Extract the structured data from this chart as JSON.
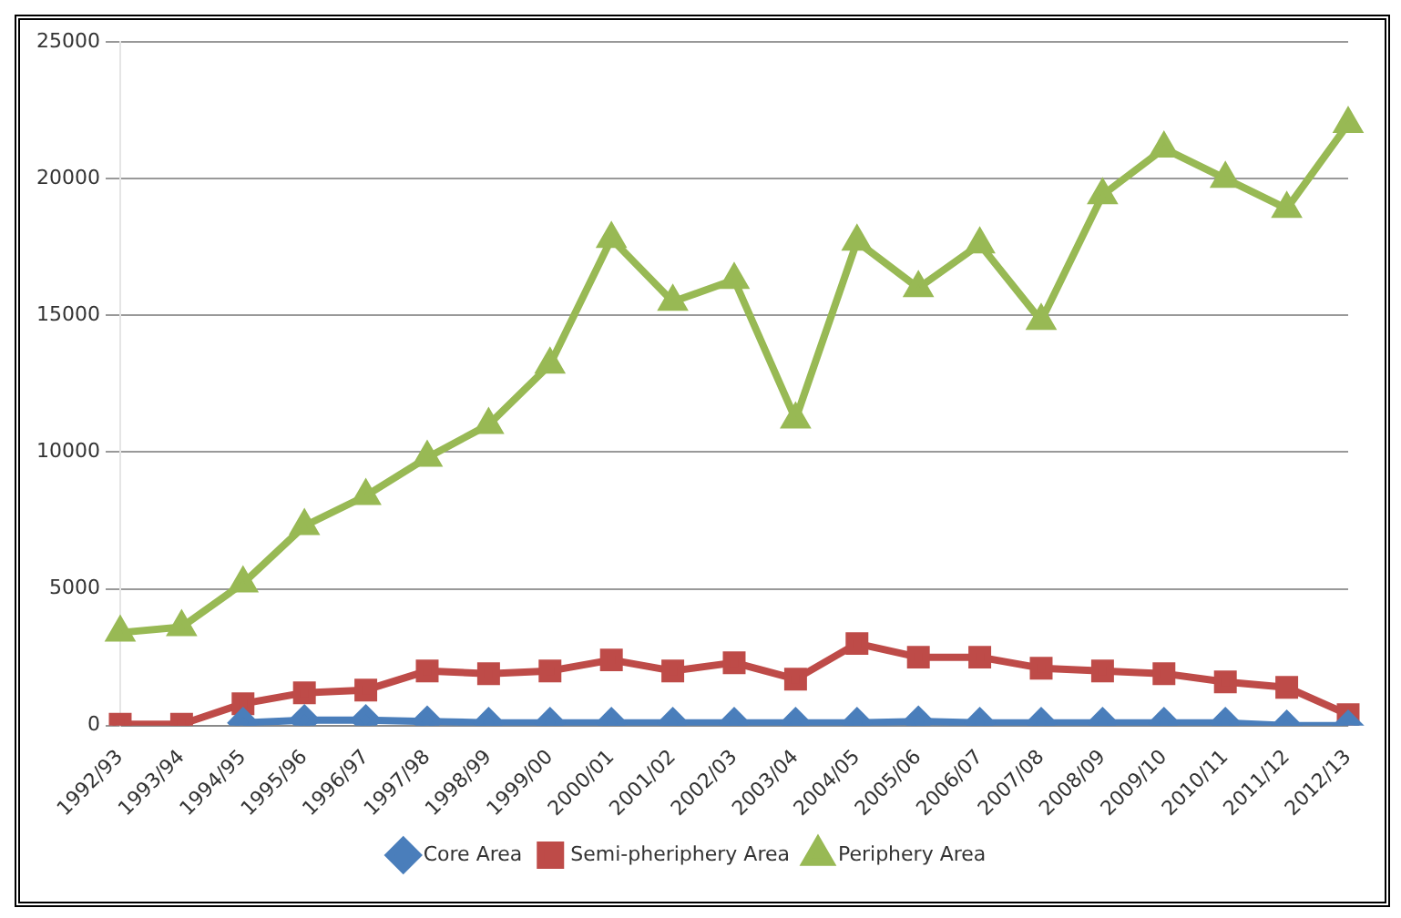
{
  "chart_data": {
    "type": "line",
    "categories": [
      "1992/93",
      "1993/94",
      "1994/95",
      "1995/96",
      "1996/97",
      "1997/98",
      "1998/99",
      "1999/00",
      "2000/01",
      "2001/02",
      "2002/03",
      "2003/04",
      "2004/05",
      "2005/06",
      "2006/07",
      "2007/08",
      "2008/09",
      "2009/10",
      "2010/11",
      "2011/12",
      "2012/13"
    ],
    "series": [
      {
        "name": "Core Area",
        "color": "#4a7ebb",
        "marker": "diamond",
        "values": [
          null,
          null,
          100,
          200,
          200,
          150,
          100,
          100,
          100,
          100,
          100,
          100,
          100,
          150,
          100,
          100,
          100,
          100,
          100,
          0,
          0
        ]
      },
      {
        "name": "Semi-pheriphery Area",
        "color": "#be4b48",
        "marker": "square",
        "values": [
          50,
          50,
          800,
          1200,
          1300,
          2000,
          1900,
          2000,
          2400,
          2000,
          2300,
          1700,
          3000,
          2500,
          2500,
          2100,
          2000,
          1900,
          1600,
          1400,
          400
        ]
      },
      {
        "name": "Periphery Area",
        "color": "#98b954",
        "marker": "triangle",
        "values": [
          3400,
          3600,
          5200,
          7300,
          8400,
          9800,
          11000,
          13200,
          17800,
          15500,
          16300,
          11200,
          17700,
          16000,
          17600,
          14800,
          19400,
          21100,
          20000,
          18900,
          22000
        ]
      }
    ],
    "ylim": [
      0,
      25000
    ],
    "yticks": [
      0,
      5000,
      10000,
      15000,
      20000,
      25000
    ],
    "grid": "y",
    "legend": "bottom",
    "line_style": "solid"
  }
}
